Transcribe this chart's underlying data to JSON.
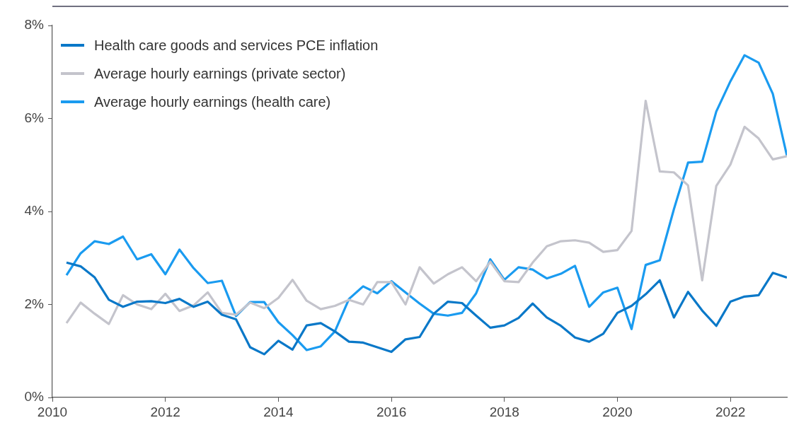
{
  "chart_data": {
    "type": "line",
    "legend": "top left",
    "marker": "none",
    "line_style": "solid",
    "grid": false,
    "xlim": [
      2010,
      2023
    ],
    "xticks": [
      2010,
      2012,
      2014,
      2016,
      2018,
      2020,
      2022
    ],
    "ylim": [
      0,
      8
    ],
    "yticks": [
      {
        "value": 0,
        "label": "0%"
      },
      {
        "value": 2,
        "label": "2%"
      },
      {
        "value": 4,
        "label": "4%"
      },
      {
        "value": 6,
        "label": "6%"
      },
      {
        "value": 8,
        "label": "8%"
      }
    ],
    "x": [
      2010.25,
      2010.5,
      2010.75,
      2011,
      2011.25,
      2011.5,
      2011.75,
      2012,
      2012.25,
      2012.5,
      2012.75,
      2013,
      2013.25,
      2013.5,
      2013.75,
      2014,
      2014.25,
      2014.5,
      2014.75,
      2015,
      2015.25,
      2015.5,
      2015.75,
      2016,
      2016.25,
      2016.5,
      2016.75,
      2017,
      2017.25,
      2017.5,
      2017.75,
      2018,
      2018.25,
      2018.5,
      2018.75,
      2019,
      2019.25,
      2019.5,
      2019.75,
      2020,
      2020.25,
      2020.5,
      2020.75,
      2021,
      2021.25,
      2021.5,
      2021.75,
      2022,
      2022.25,
      2022.5,
      2022.75,
      2023
    ],
    "series": [
      {
        "name": "Health care goods and services PCE inflation",
        "color": "#0a78c8",
        "values": [
          2.9,
          2.82,
          2.58,
          2.1,
          1.95,
          2.06,
          2.07,
          2.03,
          2.12,
          1.95,
          2.06,
          1.78,
          1.68,
          1.08,
          0.93,
          1.22,
          1.03,
          1.55,
          1.6,
          1.42,
          1.2,
          1.18,
          1.08,
          0.98,
          1.25,
          1.3,
          1.8,
          2.06,
          2.03,
          1.76,
          1.5,
          1.55,
          1.71,
          2.02,
          1.72,
          1.54,
          1.29,
          1.2,
          1.37,
          1.82,
          1.97,
          2.22,
          2.52,
          1.72,
          2.27,
          1.87,
          1.54,
          2.06,
          2.17,
          2.2,
          2.68,
          2.58
        ]
      },
      {
        "name": "Average hourly earnings (private sector)",
        "color": "#c4c4cc",
        "values": [
          1.6,
          2.04,
          1.8,
          1.58,
          2.2,
          2.0,
          1.9,
          2.23,
          1.86,
          1.98,
          2.26,
          1.82,
          1.78,
          2.04,
          1.92,
          2.14,
          2.53,
          2.08,
          1.9,
          1.97,
          2.1,
          2.0,
          2.48,
          2.48,
          2.0,
          2.8,
          2.45,
          2.65,
          2.8,
          2.5,
          2.92,
          2.5,
          2.48,
          2.9,
          3.25,
          3.36,
          3.38,
          3.33,
          3.13,
          3.17,
          3.58,
          6.38,
          4.86,
          4.84,
          4.56,
          2.52,
          4.55,
          5.01,
          5.82,
          5.57,
          5.12,
          5.19
        ]
      },
      {
        "name": "Average hourly earnings (health care)",
        "color": "#1a9bf0",
        "values": [
          2.63,
          3.1,
          3.36,
          3.3,
          3.46,
          2.97,
          3.08,
          2.65,
          3.18,
          2.78,
          2.46,
          2.51,
          1.75,
          2.05,
          2.05,
          1.62,
          1.34,
          1.02,
          1.1,
          1.42,
          2.12,
          2.39,
          2.24,
          2.5,
          2.26,
          2.02,
          1.8,
          1.76,
          1.82,
          2.24,
          2.97,
          2.53,
          2.8,
          2.75,
          2.56,
          2.66,
          2.83,
          1.95,
          2.26,
          2.36,
          1.47,
          2.85,
          2.95,
          4.05,
          5.05,
          5.07,
          6.15,
          6.8,
          7.36,
          7.2,
          6.53,
          5.2
        ]
      }
    ]
  }
}
